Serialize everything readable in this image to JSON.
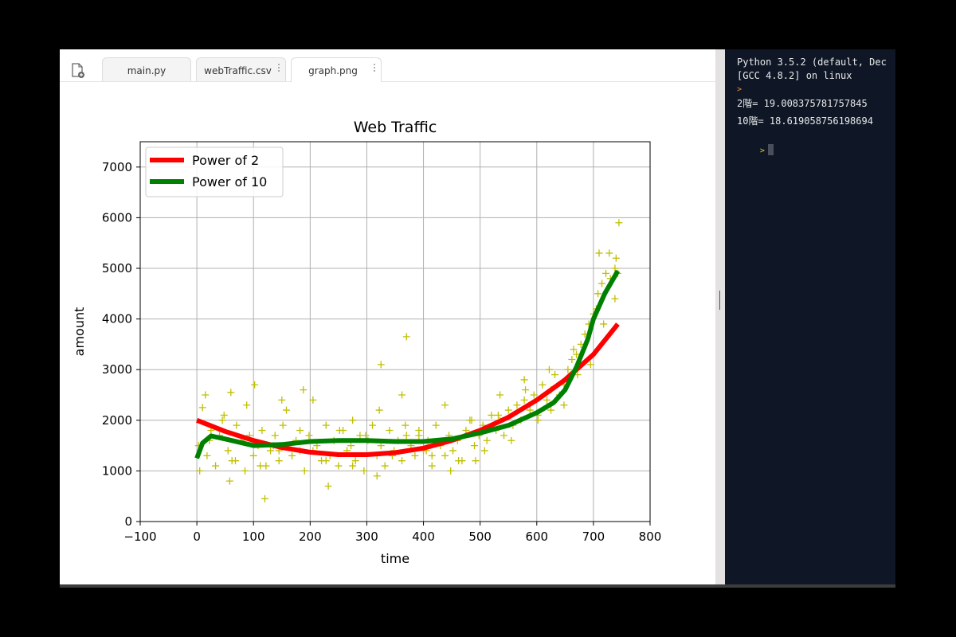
{
  "editor": {
    "new_file_icon": "file-add-icon",
    "tabs": [
      {
        "label": "main.py",
        "active": false
      },
      {
        "label": "webTraffic.csv",
        "active": false
      },
      {
        "label": "graph.png",
        "active": true
      }
    ]
  },
  "console": {
    "lines": [
      {
        "text": "Python 3.5.2 (default, Dec"
      },
      {
        "text": "[GCC 4.8.2] on linux"
      },
      {
        "text": "2階= 19.008375781757845"
      },
      {
        "text": "10階= 18.619058756198694"
      }
    ],
    "prompt_glyph": ">"
  },
  "chart_data": {
    "type": "scatter",
    "title": "Web Traffic",
    "xlabel": "time",
    "ylabel": "amount",
    "xlim": [
      -100,
      800
    ],
    "ylim": [
      0,
      7500
    ],
    "x_ticks": [
      "−100",
      "0",
      "100",
      "200",
      "300",
      "400",
      "500",
      "600",
      "700",
      "800"
    ],
    "y_ticks": [
      "0",
      "1000",
      "2000",
      "3000",
      "4000",
      "5000",
      "6000",
      "7000"
    ],
    "grid": true,
    "legend_position": "top-left",
    "series": [
      {
        "name": "Power of 2",
        "kind": "line",
        "color": "#ff0000",
        "x": [
          0,
          50,
          100,
          150,
          200,
          250,
          300,
          350,
          400,
          450,
          500,
          550,
          600,
          650,
          700,
          743
        ],
        "y": [
          2000,
          1780,
          1600,
          1460,
          1370,
          1320,
          1320,
          1360,
          1450,
          1600,
          1800,
          2060,
          2400,
          2800,
          3300,
          3900
        ]
      },
      {
        "name": "Power of 10",
        "kind": "line",
        "color": "#008000",
        "x": [
          0,
          10,
          25,
          50,
          100,
          150,
          200,
          250,
          300,
          350,
          400,
          450,
          500,
          550,
          600,
          630,
          650,
          670,
          690,
          700,
          720,
          743
        ],
        "y": [
          1250,
          1550,
          1690,
          1630,
          1500,
          1520,
          1580,
          1600,
          1600,
          1580,
          1580,
          1630,
          1750,
          1900,
          2150,
          2350,
          2600,
          3050,
          3600,
          4000,
          4500,
          4950
        ]
      },
      {
        "name": "",
        "kind": "markers",
        "color": "#bfbf00",
        "x": [
          3,
          10,
          18,
          25,
          33,
          40,
          48,
          55,
          62,
          70,
          78,
          85,
          93,
          100,
          108,
          115,
          122,
          130,
          138,
          145,
          152,
          160,
          168,
          175,
          182,
          190,
          198,
          205,
          212,
          220,
          228,
          235,
          242,
          250,
          258,
          265,
          272,
          280,
          288,
          295,
          302,
          310,
          318,
          325,
          332,
          340,
          348,
          355,
          362,
          370,
          378,
          385,
          392,
          400,
          408,
          415,
          422,
          430,
          438,
          445,
          452,
          460,
          468,
          475,
          482,
          490,
          498,
          505,
          512,
          520,
          528,
          535,
          542,
          550,
          558,
          565,
          572,
          580,
          588,
          595,
          602,
          610,
          618,
          625,
          632,
          640,
          648,
          655,
          662,
          670,
          678,
          685,
          692,
          700,
          708,
          715,
          722,
          730,
          738,
          743,
          5,
          22,
          45,
          68,
          88,
          112,
          135,
          158,
          182,
          205,
          228,
          252,
          275,
          298,
          322,
          345,
          368,
          392,
          415,
          438,
          462,
          485,
          508,
          532,
          555,
          578,
          602,
          625,
          648,
          672,
          695,
          718,
          738,
          15,
          58,
          102,
          145,
          188,
          232,
          275,
          318,
          362,
          405,
          448,
          492,
          535,
          578,
          622,
          665,
          705,
          728,
          740,
          120,
          325,
          370,
          150,
          60,
          710,
          745
        ],
        "y": [
          1500,
          2250,
          1300,
          1800,
          1100,
          1700,
          2100,
          1400,
          1200,
          1900,
          1600,
          1000,
          1700,
          1300,
          1500,
          1800,
          1100,
          1400,
          1700,
          1200,
          1900,
          1500,
          1300,
          1600,
          1800,
          1000,
          1700,
          1400,
          1500,
          1200,
          1900,
          1300,
          1600,
          1100,
          1800,
          1400,
          1500,
          1200,
          1700,
          1000,
          1600,
          1900,
          1300,
          1500,
          1100,
          1800,
          1400,
          1600,
          1200,
          1700,
          1500,
          1300,
          1800,
          1400,
          1600,
          1100,
          1900,
          1500,
          1300,
          1700,
          1400,
          1600,
          1200,
          1800,
          2000,
          1500,
          1700,
          1900,
          1600,
          2100,
          1800,
          2000,
          1700,
          2200,
          1900,
          2300,
          2000,
          2600,
          2200,
          2500,
          2100,
          2700,
          2400,
          2200,
          2900,
          2500,
          2700,
          3000,
          3200,
          3300,
          3500,
          3700,
          3900,
          4100,
          4500,
          4700,
          4900,
          4800,
          5000,
          4900,
          1000,
          1600,
          2000,
          1200,
          2300,
          1100,
          1500,
          2200,
          1400,
          2400,
          1200,
          1800,
          1100,
          1700,
          2200,
          1300,
          1900,
          1700,
          1300,
          2300,
          1200,
          2000,
          1400,
          2100,
          1600,
          2400,
          2000,
          2600,
          2300,
          2900,
          3100,
          3900,
          4400,
          2500,
          800,
          2700,
          1400,
          2600,
          700,
          2000,
          900,
          2500,
          1400,
          1000,
          1200,
          2500,
          2800,
          3000,
          3400,
          4200,
          5300,
          5200,
          450,
          3100,
          3650,
          2400,
          2550,
          5300,
          5900
        ]
      }
    ]
  }
}
